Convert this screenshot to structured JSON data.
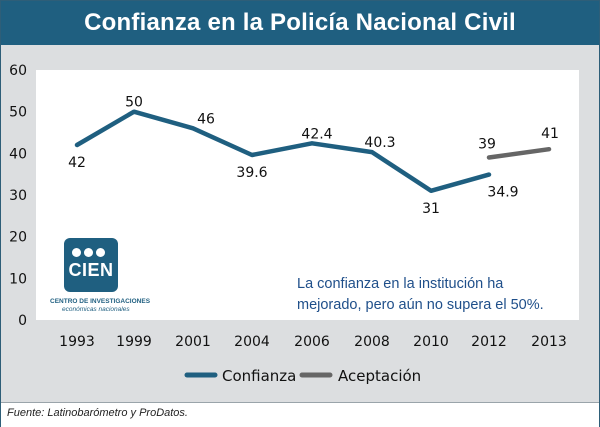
{
  "title": "Confianza en la Policía Nacional Civil",
  "footer": "Fuente: Latinobarómetro y ProDatos.",
  "note": "La confianza en la institución ha mejorado, pero aún no supera el 50%.",
  "logo": {
    "text": "CIEN",
    "caption_line1": "CENTRO DE INVESTIGACIONES",
    "caption_line2": "económicas nacionales"
  },
  "colors": {
    "header": "#1f5f80",
    "confianza": "#1f5f80",
    "aceptacion": "#666666",
    "panel": "#dcdee0"
  },
  "chart_data": {
    "type": "line",
    "title": "Confianza en la Policía Nacional Civil",
    "categories": [
      "1993",
      "1999",
      "2001",
      "2004",
      "2006",
      "2008",
      "2010",
      "2012",
      "2013"
    ],
    "ylim": [
      0,
      60
    ],
    "yticks": [
      0,
      10,
      20,
      30,
      40,
      50,
      60
    ],
    "grid": false,
    "legend": "bottom",
    "series": [
      {
        "name": "Confianza",
        "color": "#1f5f80",
        "values": [
          42,
          50,
          46,
          39.6,
          42.4,
          40.3,
          31,
          34.9,
          null
        ],
        "labels": [
          "42",
          "50",
          "46",
          "39.6",
          "42.4",
          "40.3",
          "31",
          "34.9",
          null
        ]
      },
      {
        "name": "Aceptación",
        "color": "#666666",
        "values": [
          null,
          null,
          null,
          null,
          null,
          null,
          null,
          39,
          41
        ],
        "labels": [
          null,
          null,
          null,
          null,
          null,
          null,
          null,
          "39",
          "41"
        ]
      }
    ]
  }
}
